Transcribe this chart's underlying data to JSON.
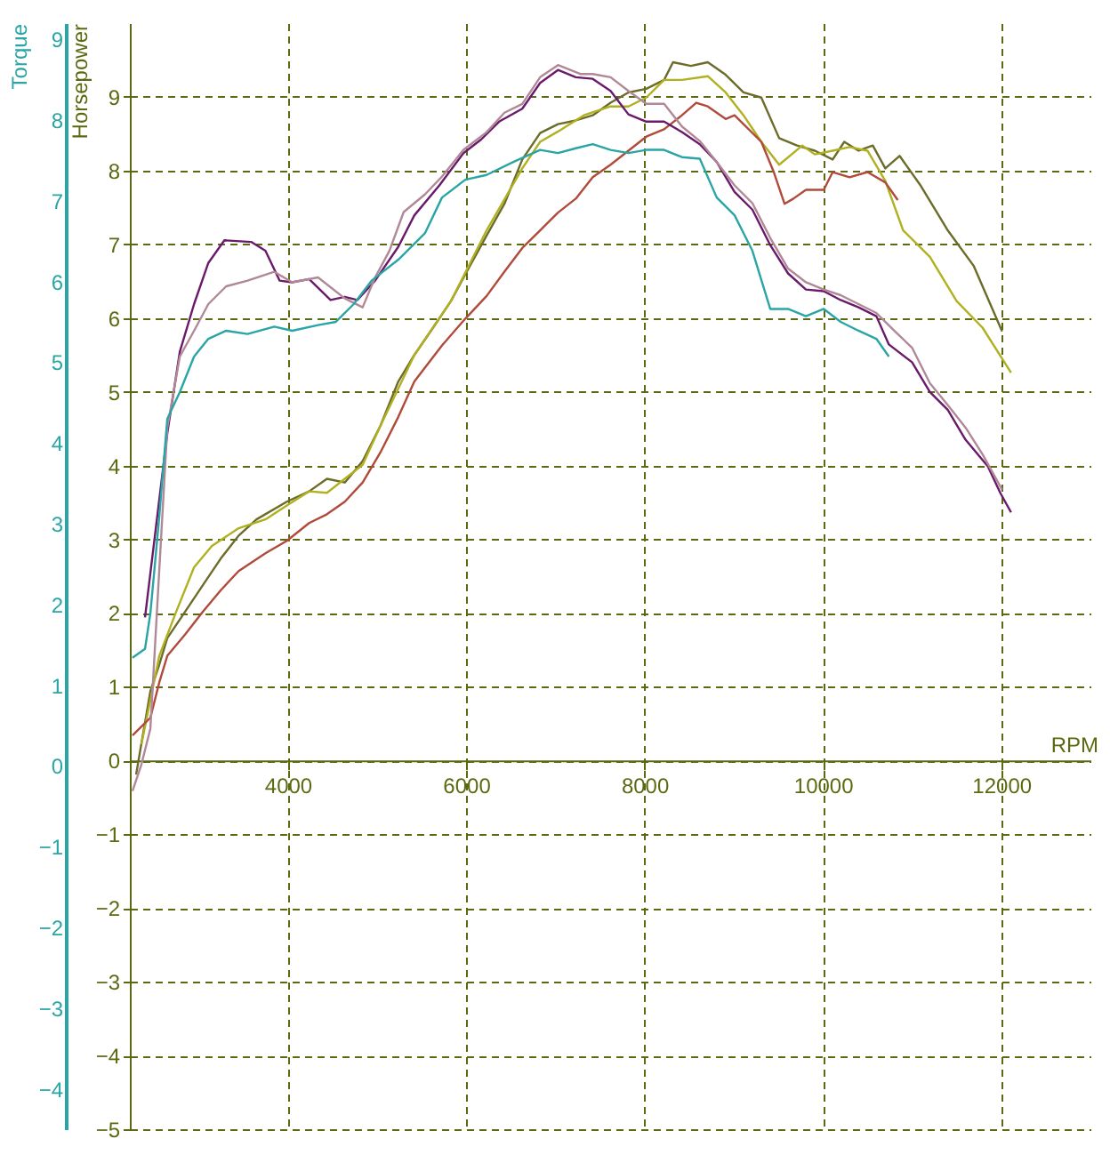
{
  "chart_data": {
    "type": "line",
    "xlabel": "RPM",
    "ylabel": "Horsepower",
    "y2label": "Torque",
    "xlim": [
      2230,
      13000
    ],
    "xticks": [
      4000,
      6000,
      8000,
      10000,
      12000
    ],
    "ylim": [
      -5,
      10
    ],
    "yticks": [
      -5,
      -4,
      -3,
      -2,
      -1,
      0,
      1,
      2,
      3,
      4,
      5,
      6,
      7,
      8,
      9
    ],
    "y2lim": [
      -4.5,
      9.2
    ],
    "y2ticks": [
      -4,
      -3,
      -2,
      -1,
      0,
      1,
      2,
      3,
      4,
      5,
      6,
      7,
      8,
      9
    ],
    "grid": true,
    "line_style": "solid",
    "series": [
      {
        "color": "#6a1a6a",
        "axis": "y2",
        "x": [
          2400,
          2650,
          2790,
          2950,
          3110,
          3290,
          3590,
          3750,
          3910,
          4050,
          4240,
          4480,
          4640,
          4780,
          4980,
          5240,
          5420,
          5700,
          5970,
          6170,
          6370,
          6630,
          6830,
          7030,
          7230,
          7420,
          7620,
          7820,
          8020,
          8220,
          8420,
          8620,
          8810,
          9010,
          9210,
          9410,
          9610,
          9810,
          10010,
          10200,
          10400,
          10600,
          10740,
          11000,
          11200,
          11400,
          11600,
          11850,
          11990,
          12110
        ],
        "values": [
          1.84,
          4.12,
          5.13,
          5.72,
          6.23,
          6.51,
          6.49,
          6.38,
          6.01,
          5.99,
          6.03,
          5.77,
          5.81,
          5.77,
          6.01,
          6.43,
          6.82,
          7.19,
          7.59,
          7.76,
          7.98,
          8.14,
          8.46,
          8.62,
          8.53,
          8.51,
          8.36,
          8.07,
          7.98,
          7.98,
          7.85,
          7.7,
          7.48,
          7.11,
          6.89,
          6.45,
          6.1,
          5.9,
          5.88,
          5.77,
          5.68,
          5.57,
          5.22,
          5.0,
          4.63,
          4.41,
          4.04,
          3.71,
          3.38,
          3.14
        ]
      },
      {
        "color": "#b08898",
        "axis": "y2",
        "x": [
          2260,
          2360,
          2460,
          2560,
          2650,
          2790,
          2950,
          3110,
          3310,
          3550,
          3850,
          4050,
          4340,
          4640,
          4840,
          4980,
          5140,
          5300,
          5540,
          5730,
          5970,
          6230,
          6430,
          6630,
          6830,
          7030,
          7280,
          7420,
          7620,
          7820,
          8020,
          8220,
          8420,
          8620,
          8810,
          9010,
          9210,
          9410,
          9610,
          9810,
          10010,
          10200,
          10400,
          10600,
          10800,
          11000,
          11200,
          11400,
          11600,
          11790,
          12010
        ],
        "values": [
          -0.31,
          0.02,
          0.46,
          2.43,
          4.19,
          5.07,
          5.39,
          5.72,
          5.94,
          6.01,
          6.12,
          5.99,
          6.05,
          5.79,
          5.68,
          6.05,
          6.38,
          6.86,
          7.08,
          7.3,
          7.63,
          7.85,
          8.09,
          8.2,
          8.53,
          8.68,
          8.57,
          8.57,
          8.53,
          8.36,
          8.2,
          8.2,
          7.92,
          7.74,
          7.48,
          7.19,
          6.97,
          6.54,
          6.16,
          5.99,
          5.9,
          5.83,
          5.72,
          5.61,
          5.39,
          5.18,
          4.74,
          4.47,
          4.19,
          3.86,
          3.42
        ]
      },
      {
        "color": "#2aa5a5",
        "axis": "y2",
        "x": [
          2260,
          2400,
          2460,
          2560,
          2650,
          2790,
          2950,
          3110,
          3310,
          3550,
          3850,
          4050,
          4340,
          4540,
          4740,
          4940,
          5240,
          5540,
          5730,
          5990,
          6230,
          6530,
          6830,
          7030,
          7230,
          7420,
          7620,
          7820,
          8020,
          8220,
          8420,
          8620,
          8810,
          9010,
          9210,
          9410,
          9610,
          9810,
          10010,
          10200,
          10400,
          10600,
          10740
        ],
        "values": [
          1.34,
          1.45,
          1.89,
          3.09,
          4.3,
          4.63,
          5.07,
          5.29,
          5.39,
          5.35,
          5.44,
          5.39,
          5.46,
          5.5,
          5.72,
          6.01,
          6.27,
          6.6,
          7.04,
          7.26,
          7.32,
          7.48,
          7.63,
          7.59,
          7.65,
          7.7,
          7.63,
          7.59,
          7.63,
          7.63,
          7.54,
          7.52,
          7.04,
          6.82,
          6.38,
          5.66,
          5.66,
          5.57,
          5.66,
          5.5,
          5.39,
          5.29,
          5.07
        ]
      },
      {
        "color": "#6b6b2a",
        "x": [
          2300,
          2460,
          2560,
          2650,
          2850,
          3050,
          3250,
          3450,
          3650,
          3990,
          4240,
          4440,
          4640,
          4840,
          5040,
          5240,
          5420,
          5630,
          5830,
          5990,
          6230,
          6430,
          6630,
          6830,
          7030,
          7230,
          7420,
          7620,
          7820,
          8020,
          8220,
          8320,
          8520,
          8710,
          8910,
          9110,
          9310,
          9510,
          9710,
          9910,
          10110,
          10240,
          10400,
          10560,
          10700,
          10860,
          11100,
          11400,
          11690,
          12010
        ],
        "values": [
          -0.19,
          0.94,
          1.3,
          1.66,
          2.02,
          2.38,
          2.74,
          3.05,
          3.27,
          3.51,
          3.65,
          3.82,
          3.77,
          4.06,
          4.54,
          5.14,
          5.5,
          5.87,
          6.23,
          6.59,
          7.12,
          7.55,
          8.15,
          8.51,
          8.63,
          8.68,
          8.75,
          8.92,
          9.06,
          9.11,
          9.23,
          9.47,
          9.42,
          9.47,
          9.3,
          9.06,
          8.99,
          8.44,
          8.34,
          8.27,
          8.15,
          8.39,
          8.27,
          8.34,
          8.03,
          8.2,
          7.79,
          7.19,
          6.71,
          5.82
        ]
      },
      {
        "color": "#b0b020",
        "x": [
          2360,
          2560,
          2750,
          2950,
          3150,
          3450,
          3750,
          3990,
          4240,
          4440,
          4640,
          4840,
          5040,
          5420,
          5830,
          6230,
          6630,
          6830,
          7030,
          7320,
          7620,
          7820,
          8020,
          8220,
          8420,
          8710,
          8910,
          9110,
          9310,
          9510,
          9770,
          9910,
          10110,
          10300,
          10500,
          10700,
          10900,
          11200,
          11500,
          11790,
          12110
        ],
        "values": [
          0.22,
          1.42,
          2.02,
          2.62,
          2.91,
          3.15,
          3.27,
          3.46,
          3.65,
          3.63,
          3.82,
          4.01,
          4.54,
          5.5,
          6.23,
          7.19,
          8.03,
          8.39,
          8.53,
          8.75,
          8.87,
          8.87,
          8.99,
          9.23,
          9.23,
          9.28,
          9.06,
          8.75,
          8.39,
          8.08,
          8.34,
          8.22,
          8.27,
          8.32,
          8.27,
          7.86,
          7.19,
          6.83,
          6.23,
          5.87,
          5.26
        ]
      },
      {
        "color": "#b04a3a",
        "x": [
          2260,
          2360,
          2460,
          2560,
          2650,
          2850,
          3050,
          3250,
          3450,
          3750,
          3990,
          4240,
          4440,
          4640,
          4840,
          5040,
          5240,
          5420,
          5730,
          5990,
          6230,
          6430,
          6630,
          6830,
          7030,
          7230,
          7420,
          7620,
          7820,
          8020,
          8220,
          8420,
          8580,
          8710,
          8910,
          9010,
          9310,
          9450,
          9570,
          9670,
          9810,
          10010,
          10110,
          10300,
          10500,
          10700,
          10840
        ],
        "values": [
          0.34,
          0.46,
          0.58,
          1.06,
          1.42,
          1.71,
          2.02,
          2.31,
          2.57,
          2.81,
          2.98,
          3.22,
          3.34,
          3.51,
          3.77,
          4.18,
          4.66,
          5.14,
          5.63,
          5.99,
          6.3,
          6.63,
          6.95,
          7.19,
          7.43,
          7.62,
          7.91,
          8.08,
          8.27,
          8.46,
          8.56,
          8.75,
          8.92,
          8.87,
          8.7,
          8.75,
          8.39,
          7.98,
          7.55,
          7.62,
          7.74,
          7.74,
          7.98,
          7.91,
          7.98,
          7.84,
          7.6
        ]
      }
    ]
  }
}
